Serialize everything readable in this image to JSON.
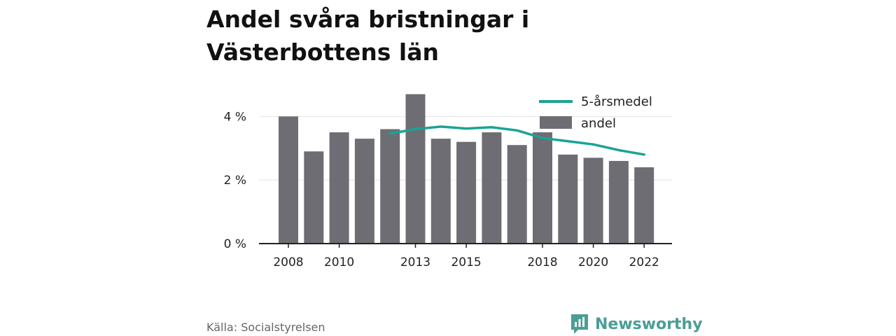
{
  "title": "Andel svåra bristningar i Västerbottens län",
  "source": "Källa: Socialstyrelsen",
  "brand": {
    "name": "Newsworthy",
    "icon": "newsworthy-logo-icon",
    "color": "#4a9e96"
  },
  "colors": {
    "bar": "#6e6d73",
    "line": "#1aa396",
    "axis": "#222222",
    "grid": "#e3e3e3"
  },
  "chart_data": {
    "type": "bar",
    "title": "Andel svåra bristningar i Västerbottens län",
    "xlabel": "",
    "ylabel": "",
    "categories": [
      2008,
      2009,
      2010,
      2011,
      2012,
      2013,
      2014,
      2015,
      2016,
      2017,
      2018,
      2019,
      2020,
      2021,
      2022
    ],
    "x_tick_labels": [
      {
        "x": 2008,
        "label": "2008"
      },
      {
        "x": 2010,
        "label": "2010"
      },
      {
        "x": 2013,
        "label": "2013"
      },
      {
        "x": 2015,
        "label": "2015"
      },
      {
        "x": 2018,
        "label": "2018"
      },
      {
        "x": 2020,
        "label": "2020"
      },
      {
        "x": 2022,
        "label": "2022"
      }
    ],
    "y_ticks": [
      {
        "value": 0,
        "label": "0 %"
      },
      {
        "value": 2,
        "label": "2 %"
      },
      {
        "value": 4,
        "label": "4 %"
      }
    ],
    "ylim": [
      0,
      4.8
    ],
    "grid": true,
    "legend_position": "top-right",
    "series": [
      {
        "name": "andel",
        "type": "bar",
        "values": [
          4.0,
          2.9,
          3.5,
          3.3,
          3.6,
          4.7,
          3.3,
          3.2,
          3.5,
          3.1,
          3.5,
          2.8,
          2.7,
          2.6,
          2.4
        ]
      },
      {
        "name": "5-årsmedel",
        "type": "line",
        "values": [
          null,
          null,
          null,
          null,
          3.46,
          3.6,
          3.68,
          3.62,
          3.66,
          3.56,
          3.32,
          3.22,
          3.12,
          2.94,
          2.8
        ]
      }
    ]
  }
}
